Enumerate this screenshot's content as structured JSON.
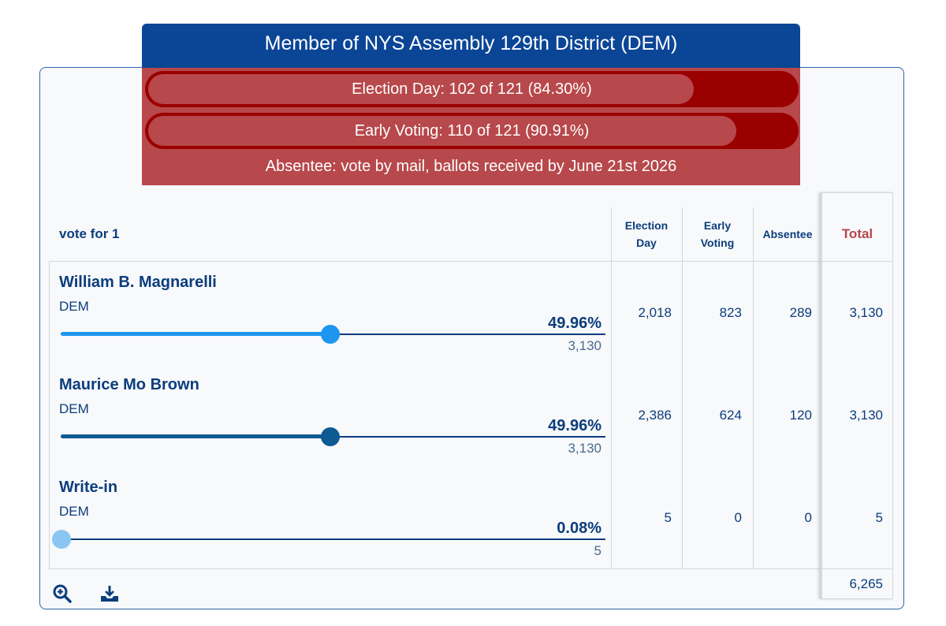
{
  "contest": {
    "title": "Member of NYS Assembly 129th District (DEM)",
    "election_day_progress": {
      "label": "Election Day: 102 of 121 (84.30%)",
      "fraction": 0.843
    },
    "early_voting_progress": {
      "label": "Early Voting: 110 of 121 (90.91%)",
      "fraction": 0.9091
    },
    "absentee_note": "Absentee: vote by mail, ballots received by June 21st 2026",
    "vote_for": "vote for 1"
  },
  "columns": {
    "election_day_line1": "Election",
    "election_day_line2": "Day",
    "early_voting_line1": "Early",
    "early_voting_line2": "Voting",
    "absentee": "Absentee",
    "total": "Total"
  },
  "candidates": [
    {
      "name": "William B. Magnarelli",
      "party": "DEM",
      "percent": "49.96%",
      "share": 0.4996,
      "votes": "3,130",
      "election_day": "2,018",
      "early_voting": "823",
      "absentee": "289",
      "total": "3,130",
      "color": "#1e96ef"
    },
    {
      "name": "Maurice Mo Brown",
      "party": "DEM",
      "percent": "49.96%",
      "share": 0.4996,
      "votes": "3,130",
      "election_day": "2,386",
      "early_voting": "624",
      "absentee": "120",
      "total": "3,130",
      "color": "#0e5a93"
    },
    {
      "name": "Write-in",
      "party": "DEM",
      "percent": "0.08%",
      "share": 0.0008,
      "votes": "5",
      "election_day": "5",
      "early_voting": "0",
      "absentee": "0",
      "total": "5",
      "color": "#8ac6f2"
    }
  ],
  "grand_total": "6,265",
  "toolbar": {
    "zoom_icon": "zoom-in-icon",
    "download_icon": "download-icon"
  }
}
